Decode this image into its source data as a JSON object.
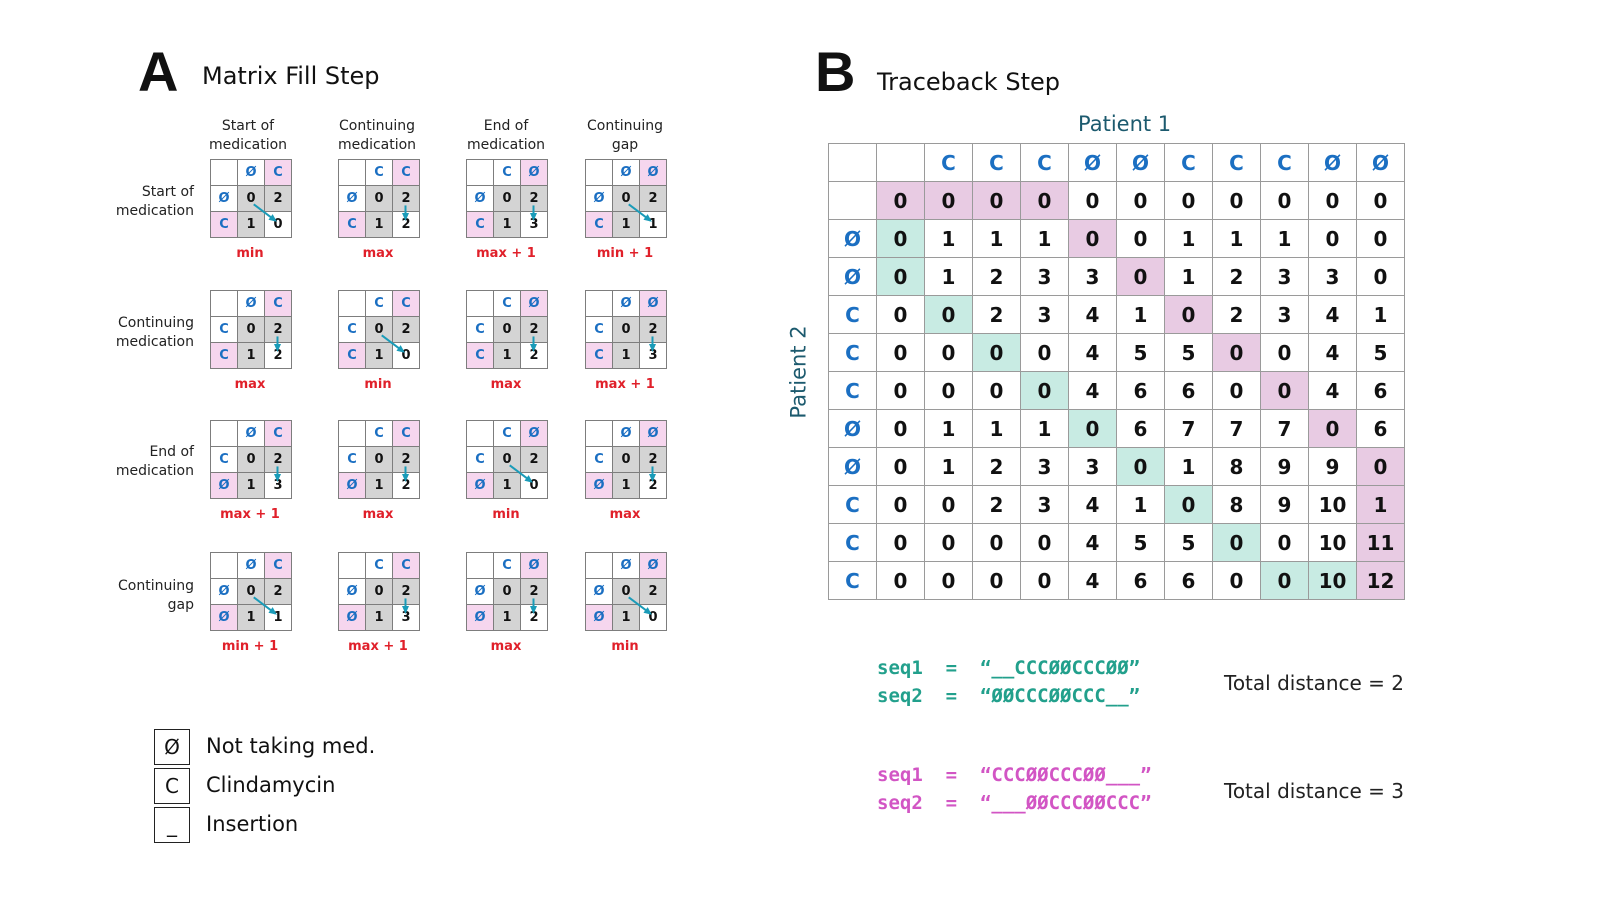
{
  "panel_a": {
    "letter": "A",
    "title": "Matrix Fill Step",
    "col_labels": [
      "Start of\nmedication",
      "Continuing\nmedication",
      "End of\nmedication",
      "Continuing\ngap"
    ],
    "row_labels": [
      "Start of\nmedication",
      "Continuing\nmedication",
      "End of\nmedication",
      "Continuing\ngap"
    ],
    "grids": [
      [
        {
          "top": [
            "",
            "Ø",
            "C"
          ],
          "left": [
            "Ø",
            "C"
          ],
          "tl": "0",
          "tr": "2",
          "bl": "1",
          "br": "0",
          "arrow": "diag",
          "caption": "min"
        },
        {
          "top": [
            "",
            "C",
            "C"
          ],
          "left": [
            "Ø",
            "C"
          ],
          "tl": "0",
          "tr": "2",
          "bl": "1",
          "br": "2",
          "arrow": "down",
          "caption": "max"
        },
        {
          "top": [
            "",
            "C",
            "Ø"
          ],
          "left": [
            "Ø",
            "C"
          ],
          "tl": "0",
          "tr": "2",
          "bl": "1",
          "br": "3",
          "arrow": "down",
          "caption": "max + 1"
        },
        {
          "top": [
            "",
            "Ø",
            "Ø"
          ],
          "left": [
            "Ø",
            "C"
          ],
          "tl": "0",
          "tr": "2",
          "bl": "1",
          "br": "1",
          "arrow": "diag",
          "caption": "min + 1"
        }
      ],
      [
        {
          "top": [
            "",
            "Ø",
            "C"
          ],
          "left": [
            "C",
            "C"
          ],
          "tl": "0",
          "tr": "2",
          "bl": "1",
          "br": "2",
          "arrow": "down",
          "caption": "max"
        },
        {
          "top": [
            "",
            "C",
            "C"
          ],
          "left": [
            "C",
            "C"
          ],
          "tl": "0",
          "tr": "2",
          "bl": "1",
          "br": "0",
          "arrow": "diag",
          "caption": "min"
        },
        {
          "top": [
            "",
            "C",
            "Ø"
          ],
          "left": [
            "C",
            "C"
          ],
          "tl": "0",
          "tr": "2",
          "bl": "1",
          "br": "2",
          "arrow": "down",
          "caption": "max"
        },
        {
          "top": [
            "",
            "Ø",
            "Ø"
          ],
          "left": [
            "C",
            "C"
          ],
          "tl": "0",
          "tr": "2",
          "bl": "1",
          "br": "3",
          "arrow": "down",
          "caption": "max + 1"
        }
      ],
      [
        {
          "top": [
            "",
            "Ø",
            "C"
          ],
          "left": [
            "C",
            "Ø"
          ],
          "tl": "0",
          "tr": "2",
          "bl": "1",
          "br": "3",
          "arrow": "down",
          "caption": "max + 1"
        },
        {
          "top": [
            "",
            "C",
            "C"
          ],
          "left": [
            "C",
            "Ø"
          ],
          "tl": "0",
          "tr": "2",
          "bl": "1",
          "br": "2",
          "arrow": "down",
          "caption": "max"
        },
        {
          "top": [
            "",
            "C",
            "Ø"
          ],
          "left": [
            "C",
            "Ø"
          ],
          "tl": "0",
          "tr": "2",
          "bl": "1",
          "br": "0",
          "arrow": "diag",
          "caption": "min"
        },
        {
          "top": [
            "",
            "Ø",
            "Ø"
          ],
          "left": [
            "C",
            "Ø"
          ],
          "tl": "0",
          "tr": "2",
          "bl": "1",
          "br": "2",
          "arrow": "down",
          "caption": "max"
        }
      ],
      [
        {
          "top": [
            "",
            "Ø",
            "C"
          ],
          "left": [
            "Ø",
            "Ø"
          ],
          "tl": "0",
          "tr": "2",
          "bl": "1",
          "br": "1",
          "arrow": "diag",
          "caption": "min + 1"
        },
        {
          "top": [
            "",
            "C",
            "C"
          ],
          "left": [
            "Ø",
            "Ø"
          ],
          "tl": "0",
          "tr": "2",
          "bl": "1",
          "br": "3",
          "arrow": "down",
          "caption": "max + 1"
        },
        {
          "top": [
            "",
            "C",
            "Ø"
          ],
          "left": [
            "Ø",
            "Ø"
          ],
          "tl": "0",
          "tr": "2",
          "bl": "1",
          "br": "2",
          "arrow": "down",
          "caption": "max"
        },
        {
          "top": [
            "",
            "Ø",
            "Ø"
          ],
          "left": [
            "Ø",
            "Ø"
          ],
          "tl": "0",
          "tr": "2",
          "bl": "1",
          "br": "0",
          "arrow": "diag",
          "caption": "min"
        }
      ]
    ],
    "legend": [
      {
        "symbol": "Ø",
        "label": "Not taking med."
      },
      {
        "symbol": "C",
        "label": "Clindamycin"
      },
      {
        "symbol": "_",
        "label": "Insertion"
      }
    ]
  },
  "panel_b": {
    "letter": "B",
    "title": "Traceback Step",
    "x_axis_title": "Patient 1",
    "y_axis_title": "Patient 2",
    "col_headers": [
      "C",
      "C",
      "C",
      "Ø",
      "Ø",
      "C",
      "C",
      "C",
      "Ø",
      "Ø"
    ],
    "row_headers": [
      "",
      "Ø",
      "Ø",
      "C",
      "C",
      "C",
      "Ø",
      "Ø",
      "C",
      "C",
      "C"
    ],
    "matrix": [
      [
        "0",
        "0",
        "0",
        "0",
        "0",
        "0",
        "0",
        "0",
        "0",
        "0",
        "0"
      ],
      [
        "0",
        "1",
        "1",
        "1",
        "0",
        "0",
        "1",
        "1",
        "1",
        "0",
        "0"
      ],
      [
        "0",
        "1",
        "2",
        "3",
        "3",
        "0",
        "1",
        "2",
        "3",
        "3",
        "0"
      ],
      [
        "0",
        "0",
        "2",
        "3",
        "4",
        "1",
        "0",
        "2",
        "3",
        "4",
        "1"
      ],
      [
        "0",
        "0",
        "0",
        "0",
        "4",
        "5",
        "5",
        "0",
        "0",
        "4",
        "5"
      ],
      [
        "0",
        "0",
        "0",
        "0",
        "4",
        "6",
        "6",
        "0",
        "0",
        "4",
        "6"
      ],
      [
        "0",
        "1",
        "1",
        "1",
        "0",
        "6",
        "7",
        "7",
        "7",
        "0",
        "6"
      ],
      [
        "0",
        "1",
        "2",
        "3",
        "3",
        "0",
        "1",
        "8",
        "9",
        "9",
        "0"
      ],
      [
        "0",
        "0",
        "2",
        "3",
        "4",
        "1",
        "0",
        "8",
        "9",
        "10",
        "1"
      ],
      [
        "0",
        "0",
        "0",
        "0",
        "4",
        "5",
        "5",
        "0",
        "0",
        "10",
        "11"
      ],
      [
        "0",
        "0",
        "0",
        "0",
        "4",
        "6",
        "6",
        "0",
        "0",
        "10",
        "12"
      ]
    ],
    "highlight_colors": {
      "pink": "#e8cbe3",
      "teal": "#c8ebe3"
    },
    "alignments": [
      {
        "seq1": "seq1  =  “__CCCØØCCCØØ”",
        "seq2": "seq2  =  “ØØCCCØØCCC__”",
        "distance": "Total distance = 2",
        "color": "#22a08c"
      },
      {
        "seq1": "seq1  =  “CCCØØCCCØØ___”",
        "seq2": "seq2  =  “___ØØCCCØØCCC”",
        "distance": "Total distance = 3",
        "color": "#d255c4"
      }
    ]
  }
}
